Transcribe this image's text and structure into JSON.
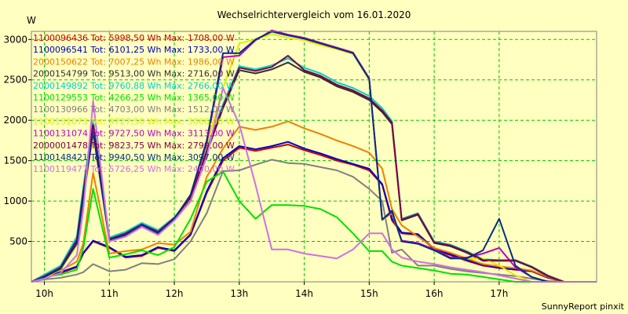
{
  "chart_data": {
    "type": "line",
    "title": "Wechselrichtervergleich vom 16.01.2020",
    "ylabel": "W",
    "footer": "SunnyReport pinxit",
    "ylim": [
      0,
      3100
    ],
    "xlim": [
      9.3,
      18.0
    ],
    "yticks": [
      500,
      1000,
      1500,
      2000,
      2500,
      3000
    ],
    "xticks": [
      {
        "value": 9.5,
        "label": "10h"
      },
      {
        "value": 10.5,
        "label": "11h"
      },
      {
        "value": 11.5,
        "label": "12h"
      },
      {
        "value": 12.5,
        "label": "13h"
      },
      {
        "value": 13.5,
        "label": "14h"
      },
      {
        "value": 14.5,
        "label": "15h"
      },
      {
        "value": 15.5,
        "label": "16h"
      },
      {
        "value": 16.5,
        "label": "17h"
      }
    ],
    "grid": true,
    "x": [
      9.3,
      9.5,
      9.75,
      10.0,
      10.1,
      10.25,
      10.5,
      10.75,
      11.0,
      11.25,
      11.5,
      11.75,
      12.0,
      12.25,
      12.5,
      12.75,
      13.0,
      13.25,
      13.5,
      13.75,
      14.0,
      14.25,
      14.5,
      14.7,
      14.85,
      15.0,
      15.25,
      15.5,
      15.75,
      16.0,
      16.25,
      16.5,
      16.75,
      17.0,
      17.25,
      17.5,
      17.75,
      18.0
    ],
    "series": [
      {
        "name": "1100096436 Tot: 5998,50 Wh Max: 1708,00 W",
        "color": "#c80000",
        "values": [
          0,
          80,
          110,
          180,
          350,
          500,
          420,
          300,
          320,
          420,
          380,
          580,
          1100,
          1500,
          1660,
          1620,
          1660,
          1700,
          1630,
          1570,
          1500,
          1450,
          1380,
          1200,
          760,
          600,
          580,
          400,
          330,
          260,
          200,
          170,
          150,
          130,
          50,
          0,
          0,
          0
        ]
      },
      {
        "name": "1100096541 Tot: 6101,25 Wh Max: 1733,00 W",
        "color": "#0000c8",
        "values": [
          0,
          80,
          120,
          190,
          360,
          510,
          430,
          310,
          330,
          430,
          390,
          590,
          1120,
          1530,
          1680,
          1640,
          1680,
          1733,
          1650,
          1590,
          1520,
          1460,
          1400,
          1210,
          780,
          610,
          590,
          410,
          340,
          270,
          210,
          175,
          155,
          135,
          55,
          0,
          0,
          0
        ]
      },
      {
        "name": "2000150622 Tot: 7007,25 Wh Max: 1986,00 W",
        "color": "#f08000",
        "values": [
          0,
          90,
          140,
          250,
          480,
          1350,
          350,
          380,
          400,
          480,
          460,
          620,
          1300,
          1650,
          1920,
          1880,
          1920,
          1986,
          1900,
          1830,
          1750,
          1680,
          1600,
          1400,
          900,
          700,
          560,
          420,
          360,
          290,
          220,
          190,
          170,
          140,
          60,
          0,
          0,
          0
        ]
      },
      {
        "name": "2000154799 Tot: 9513,00 Wh Max: 2716,00 W",
        "color": "#303030",
        "values": [
          0,
          60,
          160,
          500,
          1100,
          1930,
          520,
          590,
          700,
          610,
          780,
          1000,
          1600,
          2150,
          2620,
          2580,
          2630,
          2716,
          2600,
          2530,
          2420,
          2350,
          2250,
          2100,
          1950,
          760,
          830,
          480,
          440,
          360,
          260,
          260,
          260,
          180,
          70,
          0,
          0,
          0
        ]
      },
      {
        "name": "2000149892 Tot: 9760,88 Wh Max: 2766,00 W",
        "color": "#00d0d0",
        "values": [
          0,
          90,
          200,
          560,
          1180,
          2000,
          550,
          620,
          730,
          640,
          800,
          1050,
          1650,
          2200,
          2670,
          2630,
          2680,
          2766,
          2650,
          2580,
          2470,
          2400,
          2300,
          2150,
          1990,
          780,
          850,
          500,
          460,
          380,
          280,
          270,
          270,
          190,
          80,
          0,
          0,
          0
        ]
      },
      {
        "name": "1100129553 Tot: 4266,25 Wh Max: 1365,00 W",
        "color": "#00e000",
        "values": [
          0,
          60,
          90,
          150,
          420,
          1150,
          300,
          340,
          390,
          330,
          430,
          780,
          1240,
          1365,
          1000,
          780,
          950,
          950,
          940,
          900,
          800,
          600,
          380,
          380,
          250,
          200,
          170,
          140,
          100,
          90,
          60,
          30,
          0,
          0,
          0,
          0,
          0,
          0
        ]
      },
      {
        "name": "1100130966 Tot: 4703,00 Wh Max: 1512,00 W",
        "color": "#808080",
        "values": [
          0,
          30,
          50,
          90,
          120,
          220,
          130,
          150,
          230,
          220,
          280,
          500,
          850,
          1370,
          1380,
          1450,
          1512,
          1470,
          1460,
          1420,
          1380,
          1300,
          1150,
          1000,
          360,
          400,
          200,
          200,
          160,
          130,
          110,
          90,
          70,
          40,
          10,
          0,
          0,
          0
        ]
      },
      {
        "name": "1100131073 Tot: 9727,50 Wh Max: 3066,00 W",
        "color": "#e8e800",
        "values": [
          0,
          50,
          150,
          450,
          1000,
          1830,
          500,
          560,
          690,
          580,
          760,
          1050,
          1700,
          2400,
          2950,
          3000,
          3066,
          3020,
          2990,
          2930,
          2880,
          2820,
          2500,
          760,
          850,
          500,
          470,
          390,
          290,
          290,
          290,
          200,
          80,
          0,
          0,
          0,
          0,
          0
        ]
      },
      {
        "name": "1100131074 Tot: 9727,50 Wh Max: 3113,00 W",
        "color": "#c000c0",
        "values": [
          0,
          60,
          170,
          470,
          1050,
          1850,
          510,
          570,
          700,
          590,
          770,
          1060,
          1720,
          2780,
          2800,
          2990,
          3113,
          3060,
          3020,
          2960,
          2900,
          2840,
          2520,
          770,
          860,
          510,
          480,
          400,
          300,
          300,
          350,
          420,
          180,
          60,
          0,
          0,
          0,
          0
        ]
      },
      {
        "name": "2000001478 Tot: 9823,75 Wh Max: 2799,00 W",
        "color": "#800040",
        "values": [
          0,
          70,
          180,
          520,
          1120,
          1960,
          530,
          600,
          710,
          620,
          790,
          1040,
          1620,
          2170,
          2650,
          2610,
          2660,
          2799,
          2620,
          2550,
          2440,
          2370,
          2270,
          2120,
          1970,
          770,
          840,
          490,
          450,
          370,
          270,
          265,
          265,
          185,
          75,
          0,
          0,
          0
        ]
      },
      {
        "name": "1100148421 Tot: 9940,50 Wh Max: 3097,00 W",
        "color": "#003080",
        "values": [
          0,
          60,
          160,
          480,
          1060,
          1870,
          520,
          580,
          710,
          600,
          780,
          1080,
          1750,
          2830,
          2830,
          3000,
          3097,
          3050,
          3010,
          2950,
          2890,
          2830,
          2510,
          770,
          880,
          500,
          470,
          390,
          290,
          290,
          390,
          780,
          200,
          60,
          0,
          0,
          0,
          0
        ]
      },
      {
        "name": "1100119477 Tot: 5726,25 Wh Max: 2400,00 W",
        "color": "#d070e0",
        "values": [
          0,
          40,
          110,
          330,
          900,
          2240,
          500,
          560,
          680,
          580,
          760,
          1000,
          1550,
          2400,
          1950,
          1200,
          400,
          400,
          350,
          320,
          290,
          400,
          600,
          600,
          400,
          300,
          250,
          220,
          180,
          150,
          120,
          80,
          40,
          0,
          0,
          0,
          0,
          0
        ]
      }
    ]
  }
}
